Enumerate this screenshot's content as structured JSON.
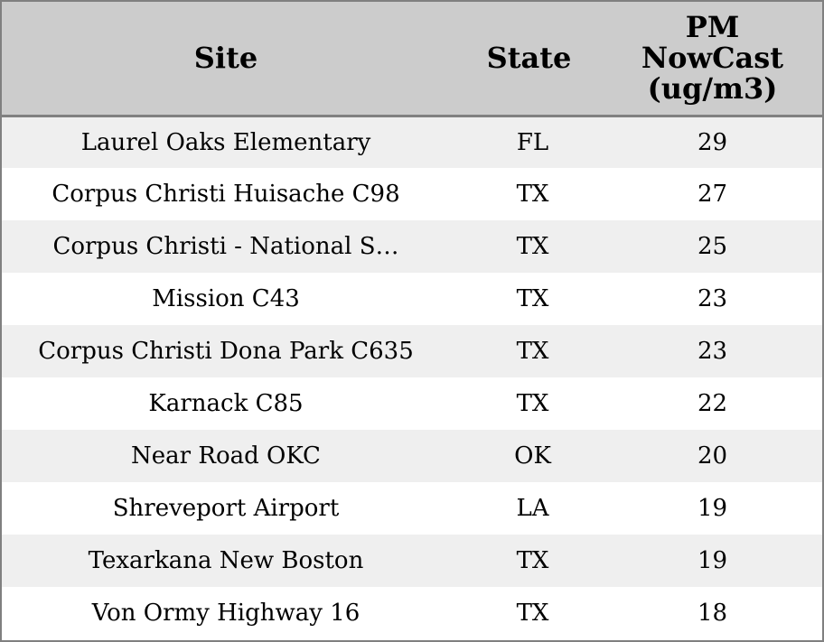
{
  "table": {
    "headers": {
      "site": "Site",
      "state": "State",
      "pm_lines": [
        "PM",
        "NowCast",
        "(ug/m3)"
      ]
    },
    "rows": [
      {
        "site": "Laurel Oaks Elementary",
        "state": "FL",
        "pm": "29"
      },
      {
        "site": "Corpus Christi Huisache C98",
        "state": "TX",
        "pm": "27"
      },
      {
        "site": "Corpus Christi - National S…",
        "state": "TX",
        "pm": "25"
      },
      {
        "site": "Mission C43",
        "state": "TX",
        "pm": "23"
      },
      {
        "site": "Corpus Christi Dona Park C635",
        "state": "TX",
        "pm": "23"
      },
      {
        "site": "Karnack C85",
        "state": "TX",
        "pm": "22"
      },
      {
        "site": "Near Road OKC",
        "state": "OK",
        "pm": "20"
      },
      {
        "site": "Shreveport Airport",
        "state": "LA",
        "pm": "19"
      },
      {
        "site": "Texarkana New Boston",
        "state": "TX",
        "pm": "19"
      },
      {
        "site": "Von Ormy Highway 16",
        "state": "TX",
        "pm": "18"
      }
    ],
    "colors": {
      "header_bg": "#cccccc",
      "row_stripe": "#efefef",
      "row_plain": "#ffffff",
      "border": "#808080"
    }
  }
}
